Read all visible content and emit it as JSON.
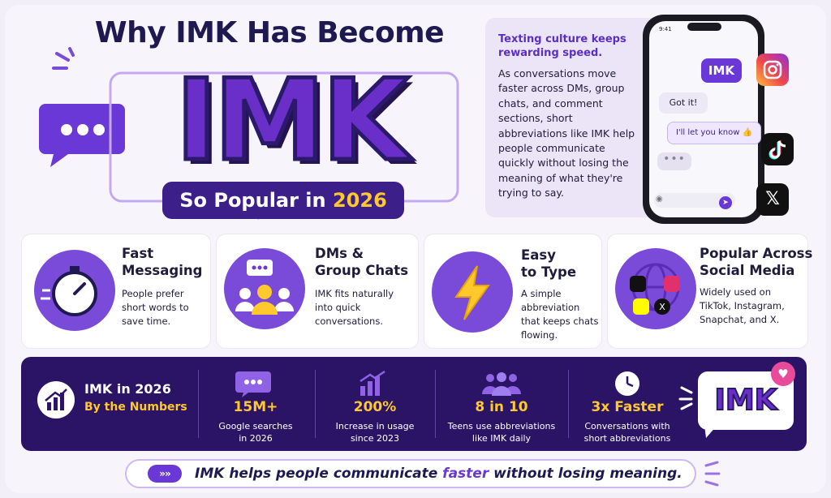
{
  "hero": {
    "title": "Why IMK Has Become",
    "big_word": "IMK",
    "pill_text": "So Popular in ",
    "pill_year": "2026"
  },
  "intro": {
    "heading": "Texting culture keeps rewarding speed.",
    "body": "As conversations move faster across DMs, group chats, and comment sections, short abbreviations like IMK help people communicate quickly without losing the meaning of what they're trying to say."
  },
  "phone": {
    "time": "9:41",
    "sent_message": "IMK",
    "reply_1": "Got it!",
    "reply_2": "I'll let you know 👍",
    "typing": "•••"
  },
  "features": [
    {
      "title_1": "Fast",
      "title_2": "Messaging",
      "desc": "People prefer short words to save time.",
      "icon": "stopwatch-icon"
    },
    {
      "title_1": "DMs &",
      "title_2": "Group Chats",
      "desc": "IMK fits naturally into quick conversations.",
      "icon": "group-chat-icon"
    },
    {
      "title_1": "Easy",
      "title_2": "to Type",
      "desc": "A simple abbreviation that keeps chats flowing.",
      "icon": "lightning-icon"
    },
    {
      "title_1": "Popular Across",
      "title_2": "Social Media",
      "desc": "Widely used on TikTok, Instagram, Snapchat, and X.",
      "icon": "globe-social-icon"
    }
  ],
  "stats": {
    "heading_1": "IMK in 2026",
    "heading_2": "By the Numbers",
    "items": [
      {
        "value": "15M+",
        "label_1": "Google searches",
        "label_2": "in 2026",
        "icon": "chat-bubble-icon"
      },
      {
        "value": "200%",
        "label_1": "Increase in usage",
        "label_2": "since 2023",
        "icon": "bar-growth-icon"
      },
      {
        "value": "8 in 10",
        "label_1": "Teens use abbreviations",
        "label_2": "like IMK daily",
        "icon": "people-icon"
      },
      {
        "value": "3x Faster",
        "label_1": "Conversations with",
        "label_2": "short abbreviations",
        "icon": "clock-icon"
      }
    ],
    "badge_text": "IMK"
  },
  "footer": {
    "arrows": "»»",
    "text_before": "IMK helps people communicate ",
    "text_accent": "faster",
    "text_after": " without losing meaning."
  },
  "colors": {
    "brand_purple": "#6a2fc8",
    "dark_navy": "#2b1466",
    "accent_yellow": "#ffc82c",
    "heart_pink": "#e94b9b"
  }
}
